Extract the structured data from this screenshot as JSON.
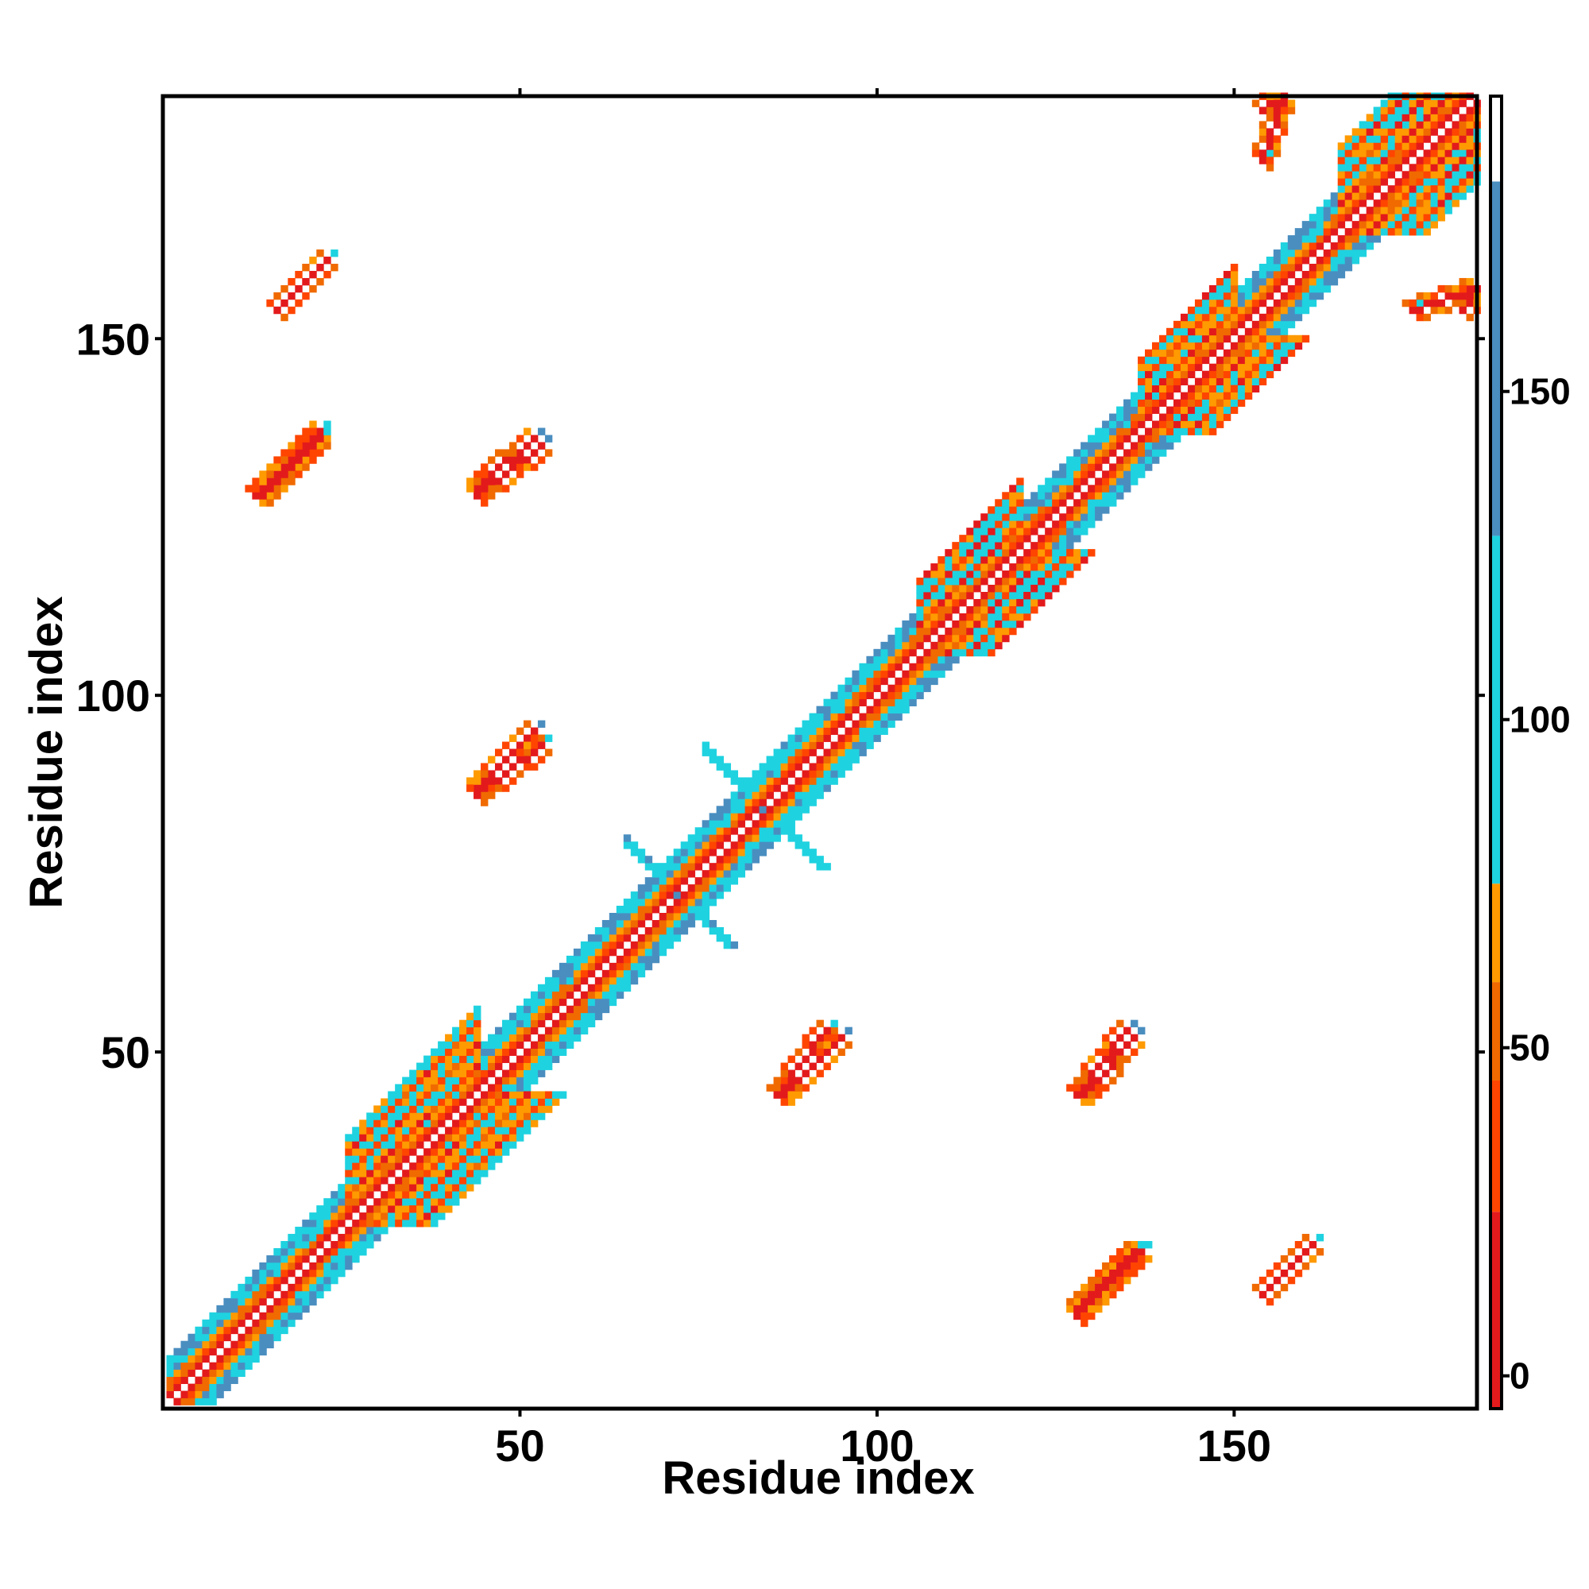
{
  "chart_data": {
    "type": "heatmap",
    "title": "",
    "xlabel": "Residue index",
    "ylabel": "Residue index",
    "xlim": [
      1,
      184
    ],
    "ylim": [
      1,
      184
    ],
    "x_ticks": [
      50,
      100,
      150
    ],
    "y_ticks": [
      50,
      100,
      150
    ],
    "colorbar": {
      "ticks": [
        0,
        50,
        100,
        150
      ],
      "range": [
        -5,
        195
      ],
      "segments": [
        {
          "from": -5,
          "to": 25,
          "color": "#e31a1c"
        },
        {
          "from": 25,
          "to": 45,
          "color": "#ff4500"
        },
        {
          "from": 45,
          "to": 60,
          "color": "#f06a00"
        },
        {
          "from": 60,
          "to": 75,
          "color": "#ff9a00"
        },
        {
          "from": 75,
          "to": 128,
          "color": "#1fd2e0"
        },
        {
          "from": 128,
          "to": 182,
          "color": "#4a8ec0"
        },
        {
          "from": 182,
          "to": 195,
          "color": "#ffffff"
        }
      ]
    },
    "grid": false,
    "legend": "right colorbar",
    "symmetric": true,
    "features": [
      {
        "kind": "diagonal_band",
        "from": 1,
        "to": 184,
        "width": 6
      },
      {
        "kind": "helix_band",
        "x": [
          26,
          44
        ],
        "width": 12
      },
      {
        "kind": "helix_band",
        "x": [
          106,
          120
        ],
        "width": 10
      },
      {
        "kind": "helix_band",
        "x": [
          137,
          150
        ],
        "width": 10
      },
      {
        "kind": "helix_band",
        "x": [
          165,
          184
        ],
        "width": 12
      },
      {
        "kind": "x_cross",
        "cx": 72,
        "cy": 72,
        "size": 7
      },
      {
        "kind": "x_cross",
        "cx": 84,
        "cy": 84,
        "size": 8
      },
      {
        "kind": "anti_strand",
        "x1": 13,
        "y1": 128,
        "x2": 22,
        "y2": 137
      },
      {
        "kind": "anti_strand",
        "x1": 16,
        "y1": 154,
        "x2": 23,
        "y2": 161
      },
      {
        "kind": "anti_strand",
        "x1": 44,
        "y1": 129,
        "x2": 52,
        "y2": 136
      },
      {
        "kind": "anti_strand",
        "x1": 44,
        "y1": 87,
        "x2": 52,
        "y2": 95
      },
      {
        "kind": "anti_strand",
        "x1": 86,
        "y1": 44,
        "x2": 93,
        "y2": 53
      },
      {
        "kind": "anti_strand",
        "x1": 128,
        "y1": 44,
        "x2": 135,
        "y2": 53
      },
      {
        "kind": "anti_strand",
        "x1": 128,
        "y1": 14,
        "x2": 136,
        "y2": 22
      },
      {
        "kind": "anti_strand",
        "x1": 154,
        "y1": 16,
        "x2": 161,
        "y2": 23
      },
      {
        "kind": "anti_strand",
        "x1": 154,
        "y1": 175,
        "x2": 157,
        "y2": 184
      },
      {
        "kind": "anti_strand",
        "x1": 182,
        "y1": 154,
        "x2": 184,
        "y2": 157
      }
    ]
  }
}
